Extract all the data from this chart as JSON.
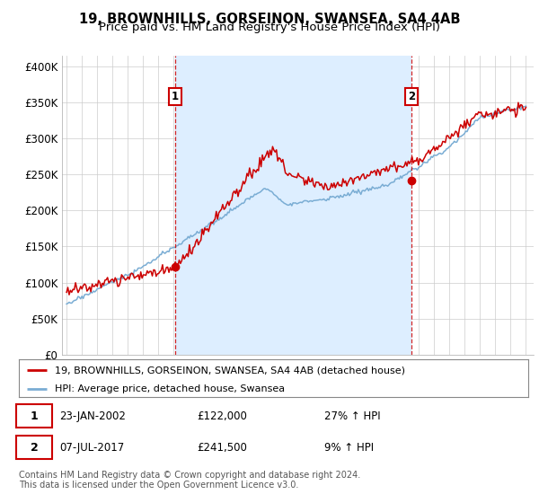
{
  "title": "19, BROWNHILLS, GORSEINON, SWANSEA, SA4 4AB",
  "subtitle": "Price paid vs. HM Land Registry's House Price Index (HPI)",
  "yticks": [
    0,
    50000,
    100000,
    150000,
    200000,
    250000,
    300000,
    350000,
    400000
  ],
  "ytick_labels": [
    "£0",
    "£50K",
    "£100K",
    "£150K",
    "£200K",
    "£250K",
    "£300K",
    "£350K",
    "£400K"
  ],
  "ylim": [
    0,
    415000
  ],
  "xlim_left": 1994.7,
  "xlim_right": 2025.5,
  "background_color": "#ffffff",
  "grid_color": "#cccccc",
  "shade_color": "#ddeeff",
  "sale1_year": 2002.065,
  "sale1_price": 122000,
  "sale2_year": 2017.51,
  "sale2_price": 241500,
  "sale_color": "#cc0000",
  "hpi_color": "#7aadd4",
  "legend_sale_label": "19, BROWNHILLS, GORSEINON, SWANSEA, SA4 4AB (detached house)",
  "legend_hpi_label": "HPI: Average price, detached house, Swansea",
  "footer": "Contains HM Land Registry data © Crown copyright and database right 2024.\nThis data is licensed under the Open Government Licence v3.0.",
  "title_fontsize": 10.5,
  "subtitle_fontsize": 9.5,
  "tick_fontsize": 8.5,
  "label_fontsize": 8.5,
  "footer_fontsize": 7
}
